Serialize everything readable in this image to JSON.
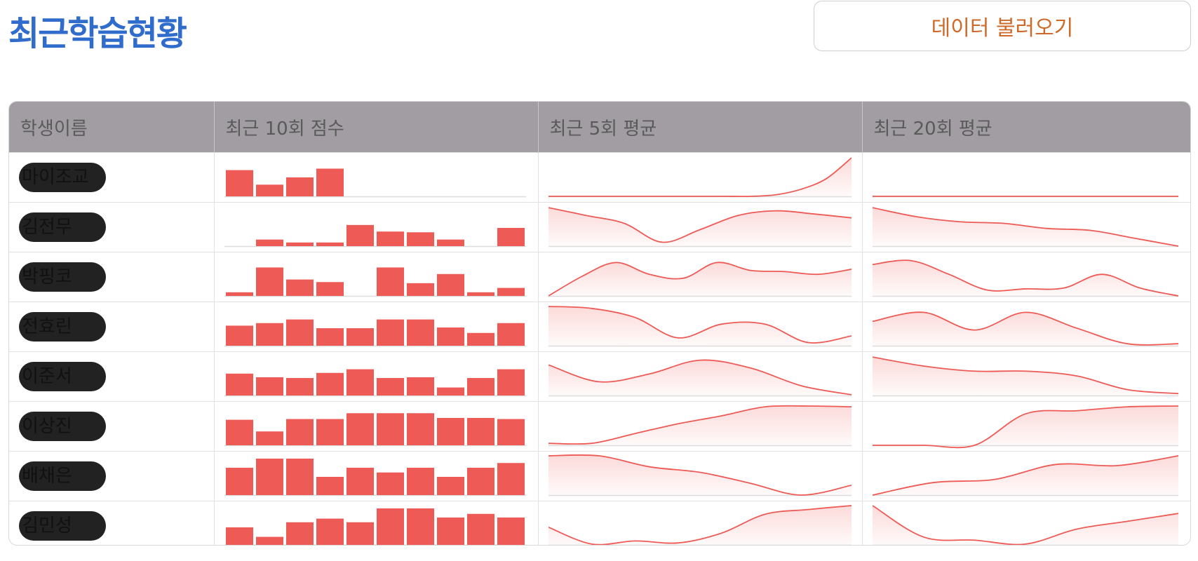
{
  "title": "최근학습현황",
  "load_button": "데이터 불러오기",
  "columns": [
    "학생이름",
    "최근 10회 점수",
    "최근 5회 평균",
    "최근 20회 평균"
  ],
  "colors": {
    "accent": "#ee5a55",
    "title": "#2f6ccb",
    "button_text": "#cd6a2a",
    "header_bg": "#a19da2"
  },
  "students": [
    {
      "name": "마이조교",
      "scores": [
        0.72,
        0.32,
        0.52,
        0.76,
        0,
        0,
        0,
        0,
        0,
        0
      ],
      "avg5": [
        0,
        0,
        0,
        0,
        0,
        0,
        0,
        0,
        0,
        0.04,
        0.18,
        0.45,
        0.98
      ],
      "avg20": [
        0,
        0,
        0,
        0,
        0,
        0,
        0,
        0,
        0,
        0,
        0
      ]
    },
    {
      "name": "김전무",
      "scores": [
        0,
        0.18,
        0.1,
        0.1,
        0.58,
        0.4,
        0.38,
        0.18,
        0,
        0.5
      ],
      "avg5": [
        0.98,
        0.78,
        0.58,
        0.1,
        0.42,
        0.78,
        0.9,
        0.82,
        0.72
      ],
      "avg20": [
        0.98,
        0.75,
        0.62,
        0.58,
        0.45,
        0.4,
        0.2,
        0
      ]
    },
    {
      "name": "박핑코",
      "scores": [
        0.1,
        0.78,
        0.45,
        0.38,
        0,
        0.78,
        0.35,
        0.6,
        0.1,
        0.22
      ],
      "avg5": [
        0,
        0.5,
        0.85,
        0.55,
        0.45,
        0.85,
        0.65,
        0.62,
        0.55,
        0.68
      ],
      "avg20": [
        0.8,
        0.9,
        0.55,
        0.15,
        0.18,
        0.2,
        0.55,
        0.2,
        0
      ]
    },
    {
      "name": "전효린",
      "scores": [
        0.55,
        0.62,
        0.72,
        0.48,
        0.48,
        0.72,
        0.72,
        0.5,
        0.35,
        0.62
      ],
      "avg5": [
        1.0,
        0.95,
        0.72,
        0.2,
        0.55,
        0.55,
        0.08,
        0.25
      ],
      "avg20": [
        0.62,
        0.85,
        0.4,
        0.85,
        0.45,
        0.05,
        0.05
      ]
    },
    {
      "name": "이준서",
      "scores": [
        0.6,
        0.5,
        0.48,
        0.62,
        0.72,
        0.48,
        0.5,
        0.22,
        0.48,
        0.72
      ],
      "avg5": [
        0.78,
        0.35,
        0.55,
        0.9,
        0.7,
        0.25,
        0.02
      ],
      "avg20": [
        0.98,
        0.75,
        0.62,
        0.62,
        0.5,
        0.15,
        0.05
      ]
    },
    {
      "name": "이상진",
      "scores": [
        0.7,
        0.38,
        0.72,
        0.72,
        0.88,
        0.88,
        0.88,
        0.75,
        0.75,
        0.72
      ],
      "avg5": [
        0.05,
        0.05,
        0.3,
        0.55,
        0.75,
        0.98,
        1.0,
        0.98
      ],
      "avg20": [
        0,
        0,
        0,
        0.8,
        0.88,
        0.98,
        1.0
      ]
    },
    {
      "name": "배채은",
      "scores": [
        0.75,
        1.0,
        1.0,
        0.5,
        0.75,
        0.62,
        0.75,
        0.5,
        0.75,
        0.88
      ],
      "avg5": [
        1.0,
        1.0,
        0.72,
        0.58,
        0.3,
        0,
        0.25
      ],
      "avg20": [
        0,
        0.32,
        0.4,
        0.78,
        0.75,
        1.0
      ]
    },
    {
      "name": "김민성",
      "scores": [
        0.48,
        0.22,
        0.62,
        0.72,
        0.62,
        1.0,
        1.0,
        0.75,
        0.85,
        0.75
      ],
      "avg5": [
        0.45,
        0.02,
        0.1,
        0.05,
        0.3,
        0.78,
        0.9,
        1.0
      ],
      "avg20": [
        1.0,
        0.2,
        0.12,
        0.02,
        0.4,
        0.6,
        0.8
      ]
    }
  ]
}
